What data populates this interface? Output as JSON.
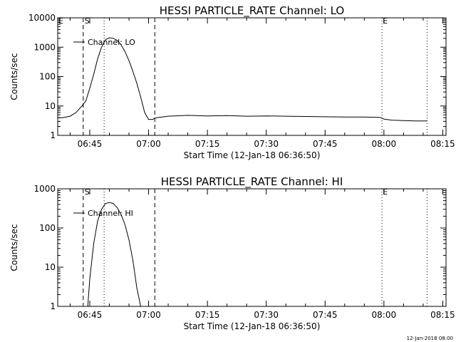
{
  "footer_stamp": "12-Jan-2018 08:00",
  "chart_data": [
    {
      "type": "line",
      "title": "HESSI PARTICLE_RATE Channel: LO",
      "xlabel": "Start Time (12-Jan-18 06:36:50)",
      "ylabel": "Counts/sec",
      "y_scale": "log",
      "ylim": [
        1,
        10000
      ],
      "xlim_minutes": [
        0,
        99
      ],
      "x_tick_labels": [
        "06:45",
        "07:00",
        "07:15",
        "07:30",
        "07:45",
        "08:00",
        "08:15"
      ],
      "y_tick_labels": [
        "1",
        "10",
        "100",
        "1000",
        "10000"
      ],
      "legend": {
        "entries": [
          "Channel: LO"
        ],
        "position": "top-left"
      },
      "markers": {
        "dashed_times": [
          "06:43:20",
          "07:01:35"
        ],
        "dotted_times": [
          "06:48:40",
          "07:59:30",
          "08:11:00"
        ],
        "labels": [
          "S",
          "E",
          "E"
        ]
      },
      "series": [
        {
          "name": "Channel: LO",
          "x_times": [
            "06:36:50",
            "06:38:00",
            "06:40:00",
            "06:41:30",
            "06:43:00",
            "06:44:00",
            "06:45:00",
            "06:46:00",
            "06:47:00",
            "06:48:00",
            "06:49:00",
            "06:50:00",
            "06:51:00",
            "06:52:00",
            "06:53:00",
            "06:54:00",
            "06:55:00",
            "06:56:00",
            "06:57:00",
            "06:58:00",
            "06:59:00",
            "07:00:00",
            "07:01:00",
            "07:02:00",
            "07:05:00",
            "07:10:00",
            "07:15:00",
            "07:20:00",
            "07:25:00",
            "07:30:00",
            "07:35:00",
            "07:40:00",
            "07:45:00",
            "07:50:00",
            "07:55:00",
            "07:59:00",
            "08:00:00",
            "08:02:00",
            "08:05:00",
            "08:08:00",
            "08:11:00"
          ],
          "y": [
            4,
            4,
            4.5,
            6,
            10,
            15,
            40,
            120,
            400,
            1000,
            1800,
            2100,
            2000,
            1700,
            1200,
            700,
            350,
            150,
            60,
            20,
            6,
            3.5,
            3.5,
            4,
            4.5,
            4.8,
            4.6,
            4.7,
            4.5,
            4.6,
            4.5,
            4.4,
            4.3,
            4.2,
            4.2,
            4.1,
            3.6,
            3.3,
            3.2,
            3.1,
            3.1
          ]
        }
      ]
    },
    {
      "type": "line",
      "title": "HESSI PARTICLE_RATE Channel: HI",
      "xlabel": "Start Time (12-Jan-18 06:36:50)",
      "ylabel": "Counts/sec",
      "y_scale": "log",
      "ylim": [
        1,
        1000
      ],
      "xlim_minutes": [
        0,
        99
      ],
      "x_tick_labels": [
        "06:45",
        "07:00",
        "07:15",
        "07:30",
        "07:45",
        "08:00",
        "08:15"
      ],
      "y_tick_labels": [
        "1",
        "10",
        "100",
        "1000"
      ],
      "legend": {
        "entries": [
          "Channel: HI"
        ],
        "position": "top-left"
      },
      "markers": {
        "dashed_times": [
          "06:43:20",
          "07:01:35"
        ],
        "dotted_times": [
          "06:48:40",
          "07:59:30",
          "08:11:00"
        ],
        "labels": [
          "S",
          "E"
        ]
      },
      "series": [
        {
          "name": "Channel: HI",
          "x_times": [
            "06:44:30",
            "06:45:00",
            "06:46:00",
            "06:47:00",
            "06:48:00",
            "06:49:00",
            "06:50:00",
            "06:51:00",
            "06:52:00",
            "06:53:00",
            "06:54:00",
            "06:55:00",
            "06:56:00",
            "06:57:00",
            "06:58:00"
          ],
          "y": [
            1,
            5,
            40,
            150,
            300,
            420,
            450,
            420,
            330,
            220,
            120,
            50,
            15,
            3,
            1
          ]
        }
      ]
    }
  ]
}
